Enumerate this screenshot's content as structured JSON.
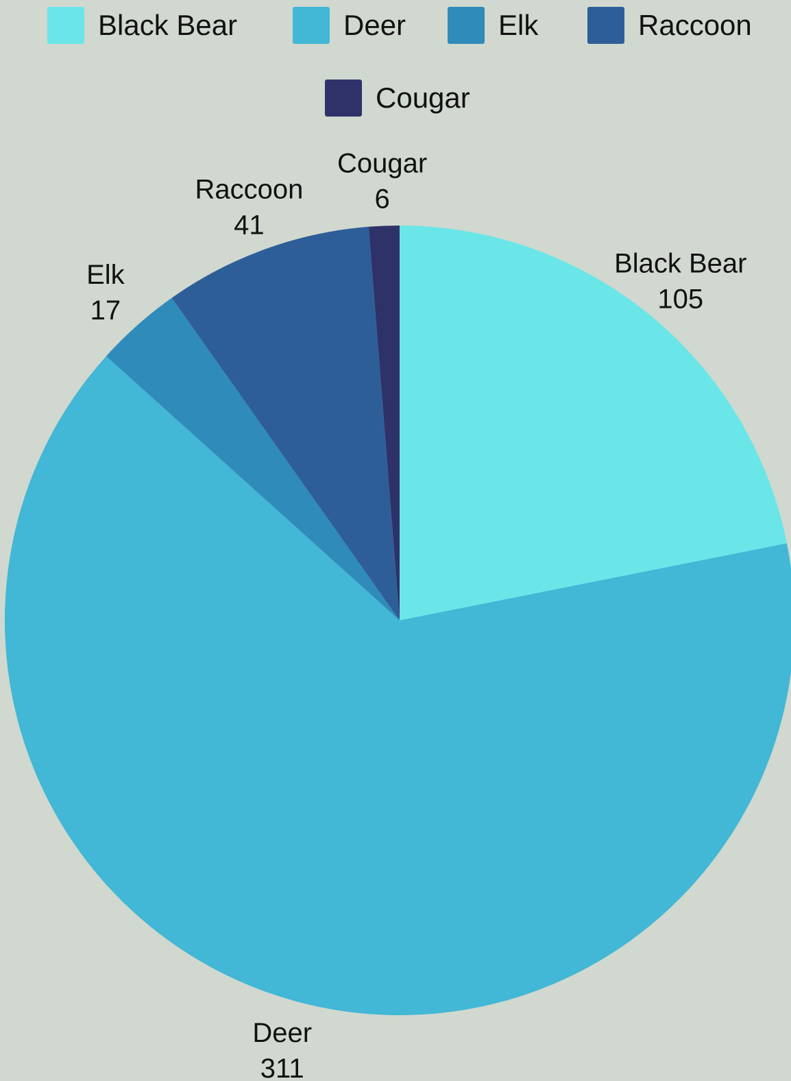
{
  "chart_data": {
    "type": "pie",
    "title": "",
    "categories": [
      "Black Bear",
      "Deer",
      "Elk",
      "Raccoon",
      "Cougar"
    ],
    "values": [
      105,
      311,
      17,
      41,
      6
    ],
    "colors": [
      "#6ae6e8",
      "#42b7d6",
      "#2e8bba",
      "#2e5e98",
      "#2e3268"
    ],
    "start_angle": "12 o'clock",
    "direction": "clockwise",
    "legend": {
      "position": "top-center"
    },
    "data_labels": "category name and value outside each slice"
  },
  "background_color": "#d0d8cf"
}
